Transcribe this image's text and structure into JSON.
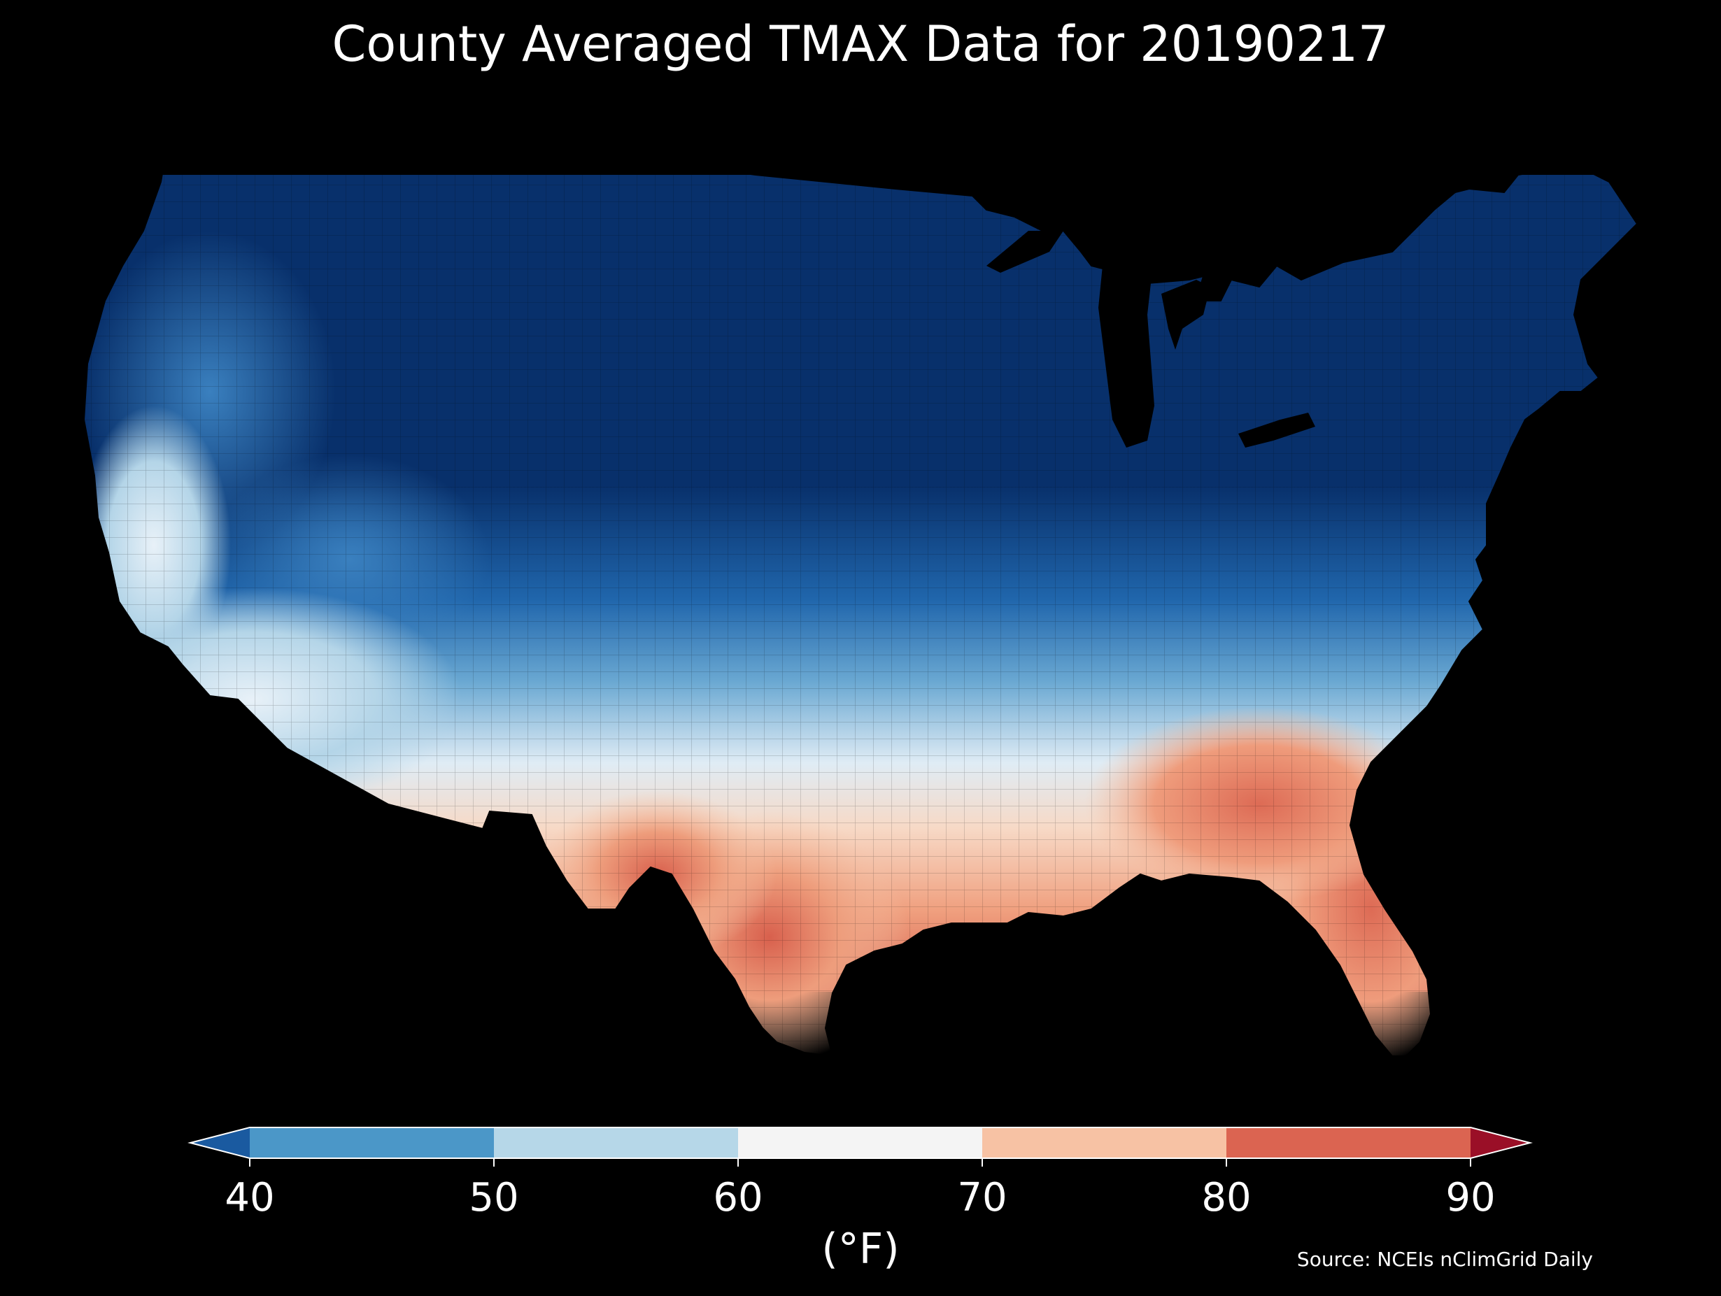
{
  "title": "County Averaged TMAX Data for 20190217",
  "colorbar": {
    "unit_label": "(°F)",
    "ticks": [
      "40",
      "50",
      "60",
      "70",
      "80",
      "90"
    ],
    "bins": [
      {
        "range": "<40",
        "color": "#1a5aa0"
      },
      {
        "range": "40-50",
        "color": "#4b97c8"
      },
      {
        "range": "50-60",
        "color": "#b6d7e8"
      },
      {
        "range": "60-70",
        "color": "#f4f4f4"
      },
      {
        "range": "70-80",
        "color": "#f7c2a4"
      },
      {
        "range": "80-90",
        "color": "#db6451"
      },
      {
        "range": ">90",
        "color": "#9a0f27"
      }
    ],
    "extend": "both"
  },
  "source": "Source: NCEIs nClimGrid Daily",
  "map": {
    "region": "Contiguous United States, county level",
    "variable": "TMAX",
    "date": "20190217",
    "background": "#000000"
  }
}
